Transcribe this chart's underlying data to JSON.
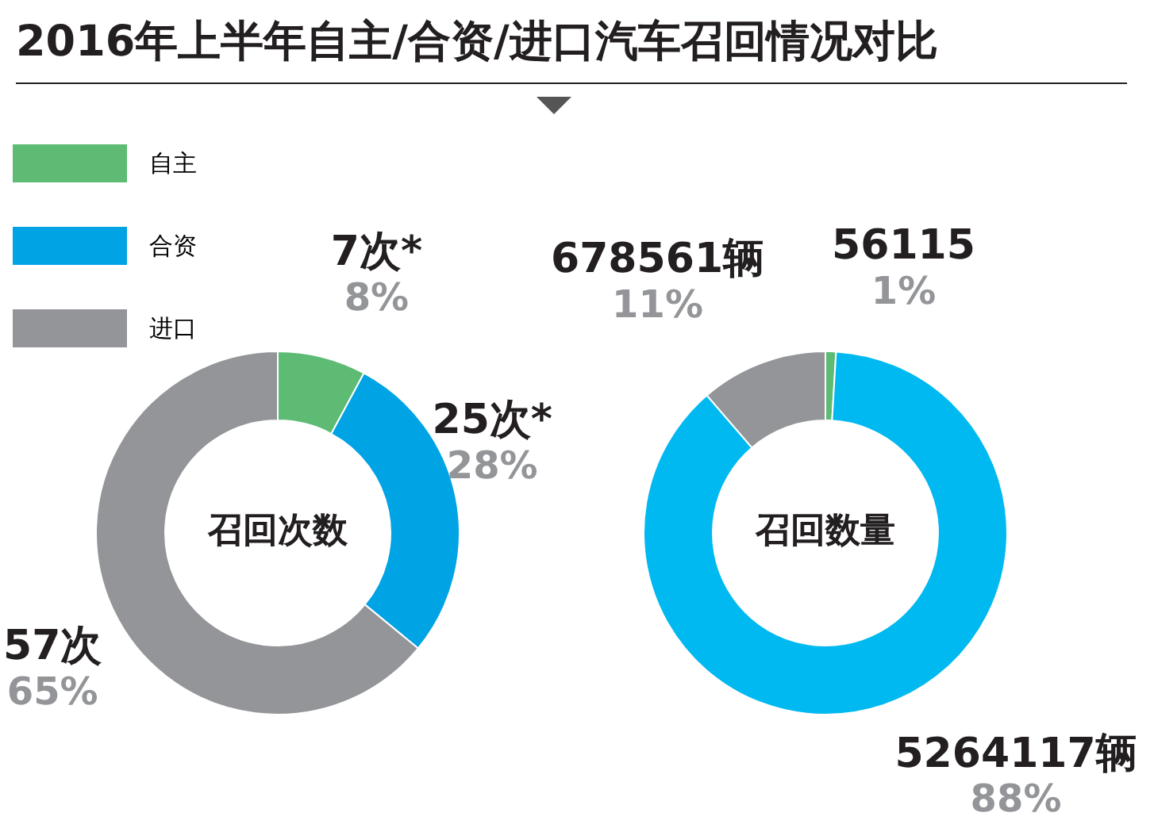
{
  "chart_data": [
    {
      "type": "donut",
      "title": "2016年上半年自主/合资/进口汽车召回情况对比",
      "subtitle": "召回次数",
      "categories": [
        "自主",
        "合资",
        "进口"
      ],
      "values": [
        7,
        25,
        57
      ],
      "colors": [
        "#5dbb74",
        "#00a3e4",
        "#939598"
      ],
      "value_labels": [
        "7次*\n8%",
        "25次*\n28%",
        "57次\n65%"
      ],
      "legend": "top left"
    },
    {
      "type": "donut",
      "subtitle": "召回数量",
      "categories": [
        null,
        null,
        null
      ],
      "values": [
        56115,
        5264117,
        678561
      ],
      "colors": [
        "#5dbb74",
        "#00b9f0",
        "#939598"
      ],
      "value_labels": [
        "56115\n1%",
        "5264117辆\n88%",
        "678561辆\n11%"
      ]
    }
  ]
}
